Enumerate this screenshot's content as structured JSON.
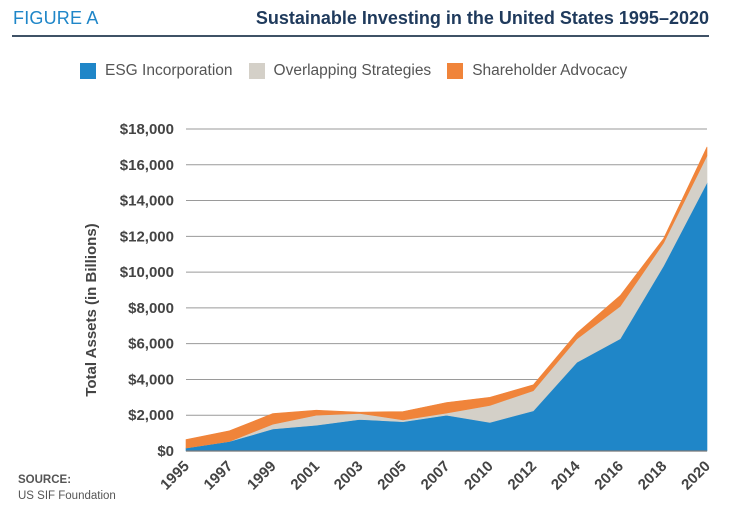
{
  "header": {
    "figure_label": "FIGURE A",
    "title": "Sustainable Investing in the United States 1995–2020"
  },
  "source": {
    "label": "SOURCE:",
    "text": "US SIF Foundation"
  },
  "chart_data": {
    "type": "area",
    "stacked": true,
    "title": "Sustainable Investing in the United States 1995–2020",
    "xlabel": "",
    "ylabel": "Total Assets (in Billions)",
    "categories": [
      "1995",
      "1997",
      "1999",
      "2001",
      "2003",
      "2005",
      "2007",
      "2010",
      "2012",
      "2014",
      "2016",
      "2018",
      "2020"
    ],
    "series": [
      {
        "name": "ESG Incorporation",
        "color": "#1f86c8",
        "values": [
          170,
          530,
          1230,
          1440,
          1760,
          1640,
          2000,
          1600,
          2250,
          4950,
          6270,
          10350,
          15000
        ]
      },
      {
        "name": "Overlapping Strategies",
        "color": "#d4d0c8",
        "values": [
          0,
          0,
          270,
          560,
          340,
          100,
          120,
          950,
          1120,
          1310,
          1820,
          1280,
          1500
        ]
      },
      {
        "name": "Shareholder Advocacy",
        "color": "#f0843a",
        "values": [
          470,
          600,
          590,
          280,
          70,
          470,
          590,
          450,
          330,
          330,
          600,
          250,
          500
        ]
      }
    ],
    "ylim": [
      0,
      18000
    ],
    "ytick_labels": [
      "$0",
      "$2,000",
      "$4,000",
      "$6,000",
      "$8,000",
      "$10,000",
      "$12,000",
      "$14,000",
      "$16,000",
      "$18,000"
    ],
    "grid": true,
    "legend": "top"
  }
}
